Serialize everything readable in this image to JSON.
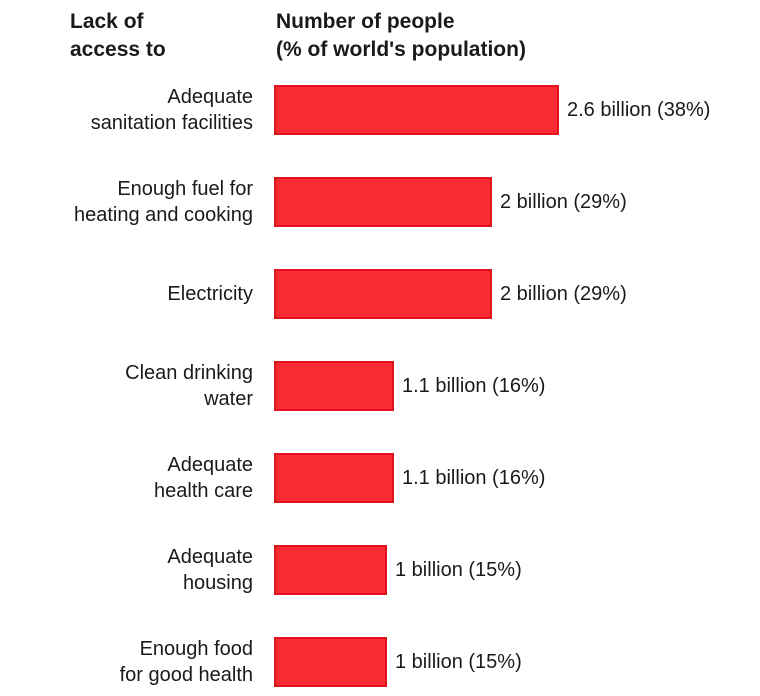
{
  "headers": {
    "left": "Lack of\naccess to",
    "right": "Number of people\n(% of world's population)"
  },
  "colors": {
    "bar": "#fb2b33",
    "bar_border": "#e0141d",
    "text": "#1a1a1a"
  },
  "chart_data": {
    "type": "bar",
    "orientation": "horizontal",
    "categories": [
      "Adequate\nsanitation facilities",
      "Enough fuel for\nheating and cooking",
      "Electricity",
      "Clean drinking\nwater",
      "Adequate\nhealth care",
      "Adequate\nhousing",
      "Enough food\nfor good health"
    ],
    "values": [
      38,
      29,
      29,
      16,
      16,
      15,
      15
    ],
    "value_labels": [
      "2.6 billion (38%)",
      "2 billion (29%)",
      "2 billion (29%)",
      "1.1 billion (16%)",
      "1.1 billion (16%)",
      "1 billion (15%)",
      "1 billion (15%)"
    ],
    "title": "",
    "xlabel": "",
    "ylabel": "",
    "xlim": [
      0,
      38
    ],
    "grid": false,
    "legend": "none"
  }
}
